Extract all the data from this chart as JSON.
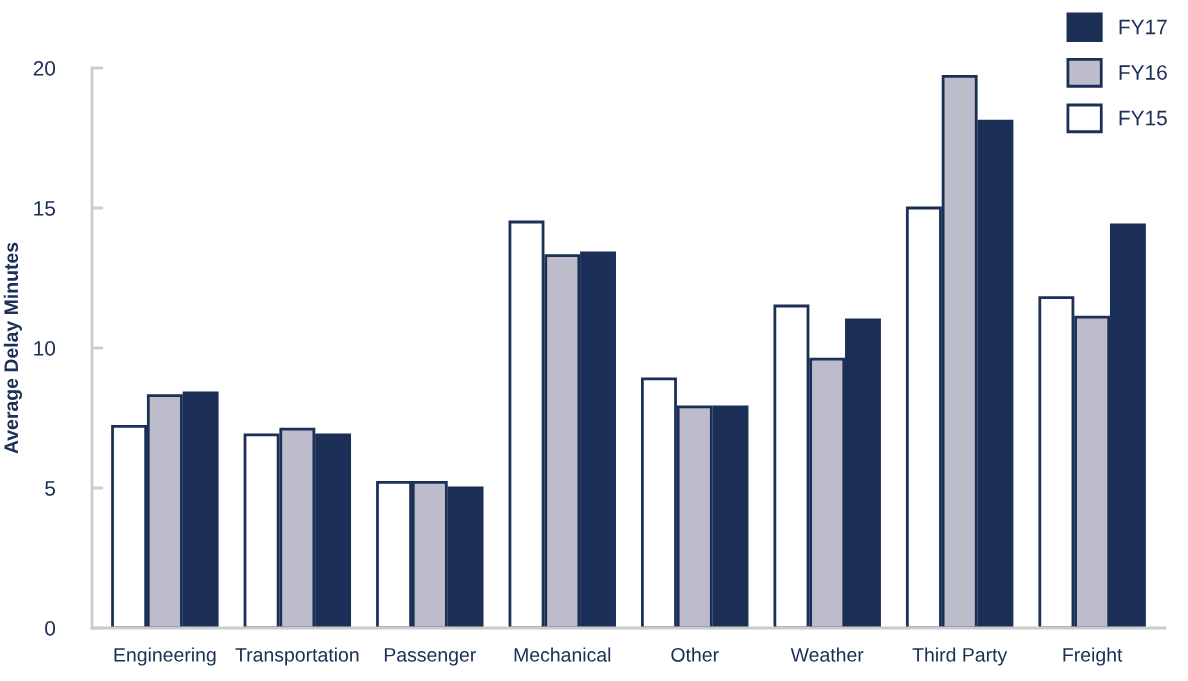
{
  "chart_data": {
    "type": "bar",
    "ylabel": "Average Delay Minutes",
    "categories": [
      "Engineering",
      "Transportation",
      "Passenger",
      "Mechanical",
      "Other",
      "Weather",
      "Third Party",
      "Freight"
    ],
    "series": [
      {
        "name": "FY15",
        "color": "#ffffff",
        "values": [
          7.2,
          6.9,
          5.2,
          14.5,
          8.9,
          11.5,
          15.0,
          11.8
        ]
      },
      {
        "name": "FY16",
        "color": "#bcbccb",
        "values": [
          8.3,
          7.1,
          5.2,
          13.3,
          7.9,
          9.6,
          19.7,
          11.1
        ]
      },
      {
        "name": "FY17",
        "color": "#1b2f57",
        "values": [
          8.4,
          6.9,
          5.0,
          13.4,
          7.9,
          11.0,
          18.1,
          14.4
        ]
      }
    ],
    "ylim": [
      0,
      20
    ],
    "yticks": [
      0,
      5,
      10,
      15,
      20
    ],
    "grid": false,
    "legend": "top right"
  }
}
